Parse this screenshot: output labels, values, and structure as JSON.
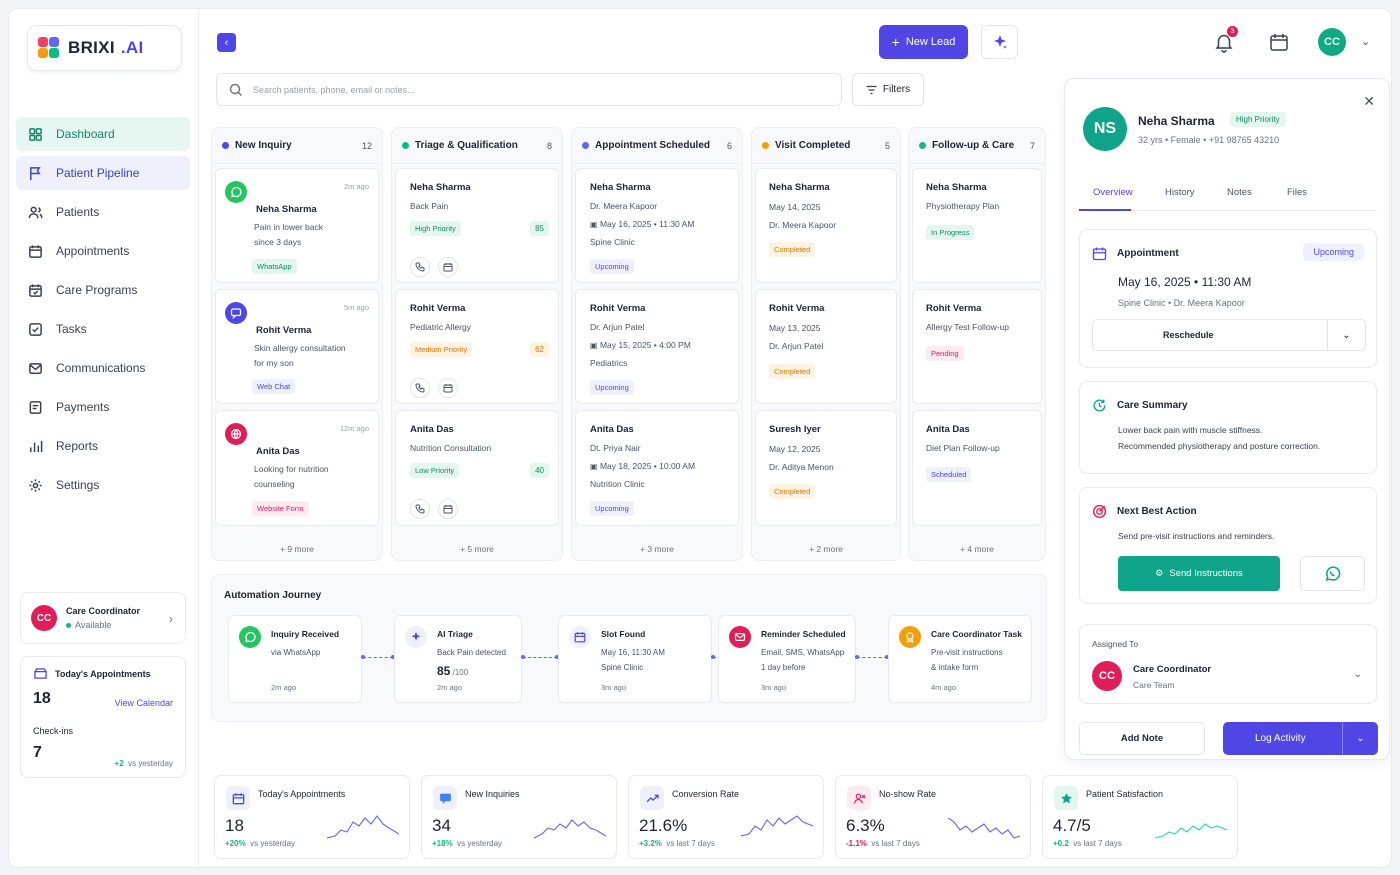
{
  "brand": {
    "name": "BRIXI",
    "suffix": ".AI"
  },
  "nav": [
    {
      "label": "Dashboard"
    },
    {
      "label": "Patient Pipeline"
    },
    {
      "label": "Patients"
    },
    {
      "label": "Appointments"
    },
    {
      "label": "Care Programs"
    },
    {
      "label": "Tasks"
    },
    {
      "label": "Communications"
    },
    {
      "label": "Payments"
    },
    {
      "label": "Reports"
    },
    {
      "label": "Settings"
    }
  ],
  "sidebar_coordinator": {
    "initials": "CC",
    "name": "Care Coordinator",
    "status": "Available"
  },
  "sidebar_today": {
    "title": "Today's Appointments",
    "count": "18",
    "link": "View Calendar",
    "checkins_label": "Check-ins",
    "checkins": "7",
    "delta": "+2",
    "delta_suffix": "vs yesterday"
  },
  "header": {
    "new_lead": "New Lead",
    "notif_count": "3",
    "user_initials": "CC"
  },
  "search": {
    "placeholder": "Search patients, phone, email or notes...",
    "filters": "Filters"
  },
  "columns": [
    {
      "title": "New Inquiry",
      "count": "12",
      "more": "+ 9 more",
      "cards": [
        {
          "time": "2m ago",
          "name": "Neha Sharma",
          "l1": "Pain in lower back",
          "l2": "since 3 days",
          "source": "WhatsApp"
        },
        {
          "time": "5m ago",
          "name": "Rohit Verma",
          "l1": "Skin allergy consultation",
          "l2": "for my son",
          "source": "Web Chat"
        },
        {
          "time": "12m ago",
          "name": "Anita Das",
          "l1": "Looking for nutrition",
          "l2": "counseling",
          "source": "Website Form"
        }
      ]
    },
    {
      "title": "Triage & Qualification",
      "count": "8",
      "more": "+ 5 more",
      "cards": [
        {
          "name": "Neha Sharma",
          "l1": "Back Pain",
          "priority": "High Priority",
          "score": "85"
        },
        {
          "name": "Rohit Verma",
          "l1": "Pediatric Allergy",
          "priority": "Medium Priority",
          "score": "62"
        },
        {
          "name": "Anita Das",
          "l1": "Nutrition Consultation",
          "priority": "Low Priority",
          "score": "40"
        }
      ]
    },
    {
      "title": "Appointment Scheduled",
      "count": "6",
      "more": "+ 3 more",
      "cards": [
        {
          "name": "Neha Sharma",
          "doctor": "Dr. Meera Kapoor",
          "when": "May 16, 2025  •  11:30 AM",
          "dept": "Spine Clinic",
          "status": "Upcoming"
        },
        {
          "name": "Rohit Verma",
          "doctor": "Dr. Arjun Patel",
          "when": "May 15, 2025  •  4:00 PM",
          "dept": "Pediatrics",
          "status": "Upcoming"
        },
        {
          "name": "Anita Das",
          "doctor": "Dt. Priya Nair",
          "when": "May 18, 2025  •  10:00 AM",
          "dept": "Nutrition Clinic",
          "status": "Upcoming"
        }
      ]
    },
    {
      "title": "Visit Completed",
      "count": "5",
      "more": "+ 2 more",
      "cards": [
        {
          "name": "Neha Sharma",
          "date": "May 14, 2025",
          "doctor": "Dr. Meera Kapoor",
          "status": "Completed"
        },
        {
          "name": "Rohit Verma",
          "date": "May 13, 2025",
          "doctor": "Dr. Arjun Patel",
          "status": "Completed"
        },
        {
          "name": "Suresh Iyer",
          "date": "May 12, 2025",
          "doctor": "Dr. Aditya Menon",
          "status": "Completed"
        }
      ]
    },
    {
      "title": "Follow-up & Care",
      "count": "7",
      "more": "+ 4 more",
      "cards": [
        {
          "name": "Neha Sharma",
          "plan": "Physiotherapy Plan",
          "status": "In Progress"
        },
        {
          "name": "Rohit Verma",
          "plan": "Allergy Test Follow-up",
          "status": "Pending"
        },
        {
          "name": "Anita Das",
          "plan": "Diet Plan Follow-up",
          "status": "Scheduled"
        }
      ]
    }
  ],
  "automation": {
    "title": "Automation Journey",
    "steps": [
      {
        "title": "Inquiry Received",
        "l1": "via WhatsApp",
        "ago": "2m ago"
      },
      {
        "title": "AI Triage",
        "l1": "Back Pain detected",
        "score": "85",
        "score_of": "/100",
        "ago": "2m ago"
      },
      {
        "title": "Slot Found",
        "l1": "May 16, 11:30 AM",
        "l2": "Spine Clinic",
        "ago": "3m ago"
      },
      {
        "title": "Reminder Scheduled",
        "l1": "Email, SMS, WhatsApp",
        "l2": "1 day before",
        "ago": "3m ago"
      },
      {
        "title": "Care Coordinator Task",
        "l1": "Pre-visit instructions",
        "l2": "& intake form",
        "ago": "4m ago"
      }
    ]
  },
  "stats": [
    {
      "label": "Today's Appointments",
      "value": "18",
      "delta": "+20%",
      "suffix": "vs yesterday"
    },
    {
      "label": "New Inquiries",
      "value": "34",
      "delta": "+18%",
      "suffix": "vs yesterday"
    },
    {
      "label": "Conversion Rate",
      "value": "21.6%",
      "delta": "+3.2%",
      "suffix": "vs last 7 days"
    },
    {
      "label": "No-show Rate",
      "value": "6.3%",
      "delta": "-1.1%",
      "suffix": "vs last 7 days"
    },
    {
      "label": "Patient Satisfaction",
      "value": "4.7/5",
      "delta": "+0.2",
      "suffix": "vs last 7 days"
    }
  ],
  "panel": {
    "initials": "NS",
    "name": "Neha Sharma",
    "priority": "High Priority",
    "meta": "32 yrs   •   Female   •   +91 98765 43210",
    "tabs": [
      "Overview",
      "History",
      "Notes",
      "Files"
    ],
    "appointment": {
      "title": "Appointment",
      "status": "Upcoming",
      "datetime": "May 16, 2025  •  11:30 AM",
      "sub": "Spine Clinic   •   Dr. Meera Kapoor",
      "reschedule": "Reschedule"
    },
    "care_summary": {
      "title": "Care Summary",
      "l1": "Lower back pain with muscle stiffness.",
      "l2": "Recommended physiotherapy and posture correction."
    },
    "next_action": {
      "title": "Next Best Action",
      "text": "Send pre-visit instructions and reminders.",
      "button": "Send Instructions"
    },
    "assigned": {
      "label": "Assigned To",
      "initials": "CC",
      "name": "Care Coordinator",
      "team": "Care Team"
    },
    "add_note": "Add Note",
    "log_activity": "Log Activity"
  }
}
